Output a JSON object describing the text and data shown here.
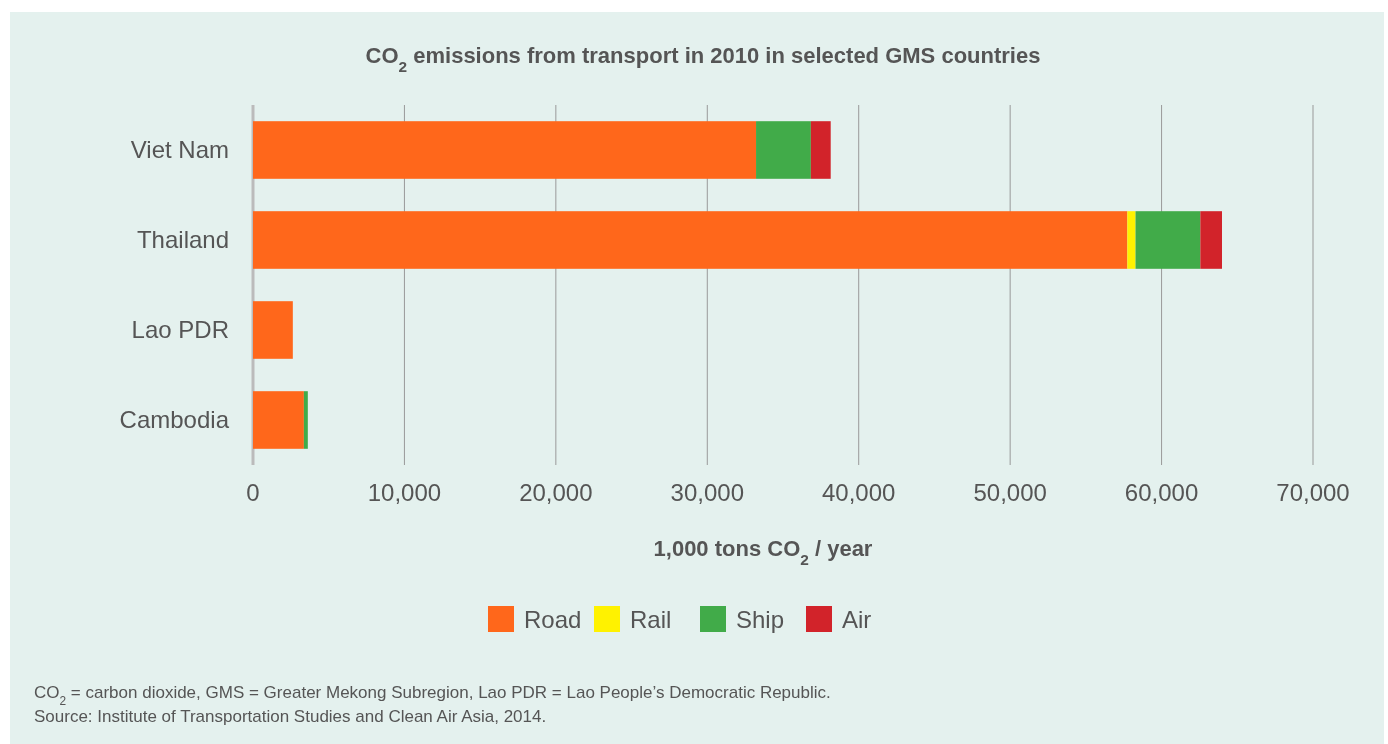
{
  "chart_data": {
    "type": "bar",
    "orientation": "horizontal",
    "stacked": true,
    "title": "CO$_{2}$ emissions from transport in 2010 in selected GMS countries",
    "xlabel": "1,000 tons CO$_{2}$ / year",
    "categories": [
      "Viet Nam",
      "Thailand",
      "Lao PDR",
      "Cambodia"
    ],
    "series": [
      {
        "name": "Road",
        "color": "#ff671b",
        "values": [
          33220,
          57740,
          2630,
          3360
        ]
      },
      {
        "name": "Rail",
        "color": "#fff200",
        "values": [
          null,
          540,
          null,
          null
        ]
      },
      {
        "name": "Ship",
        "color": "#41ab49",
        "values": [
          3620,
          4280,
          null,
          260
        ]
      },
      {
        "name": "Air",
        "color": "#d2232a",
        "values": [
          1310,
          1430,
          null,
          null
        ]
      }
    ],
    "xlim": [
      0,
      70000
    ],
    "xticks": [
      {
        "value": 0,
        "label": "0"
      },
      {
        "value": 10000,
        "label": "10,000"
      },
      {
        "value": 20000,
        "label": "20,000"
      },
      {
        "value": 30000,
        "label": "30,000"
      },
      {
        "value": 40000,
        "label": "40,000"
      },
      {
        "value": 50000,
        "label": "50,000"
      },
      {
        "value": 60000,
        "label": "60,000"
      },
      {
        "value": 70000,
        "label": "70,000"
      }
    ],
    "grid": "x",
    "legend": "bottom",
    "annotations": [
      "CO$_{2}$ = carbon dioxide, GMS = Greater Mekong Subregion, Lao PDR = Lao People’s Democratic Republic.",
      "Source: Institute of Transportation Studies and Clean Air Asia, 2014."
    ]
  }
}
